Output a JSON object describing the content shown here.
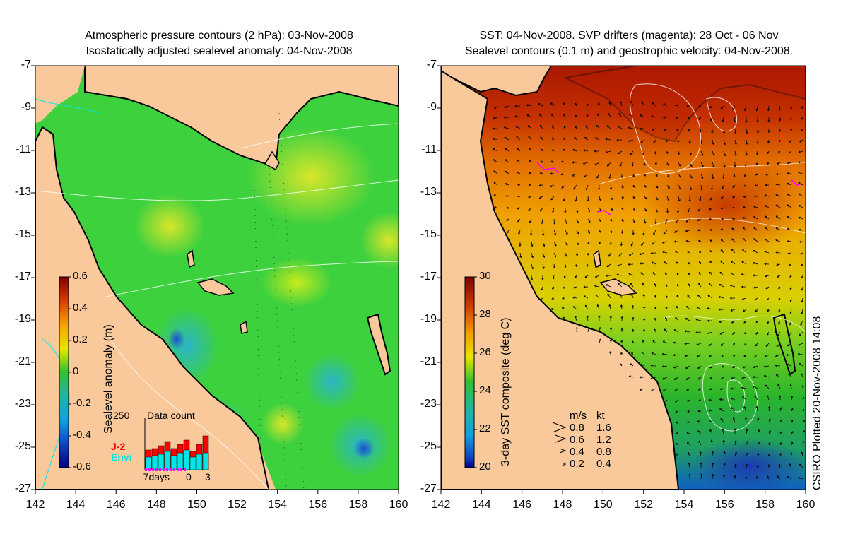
{
  "left_panel": {
    "title_line1": "Atmospheric pressure contours (2 hPa): 03-Nov-2008",
    "title_line2": "Isostatically adjusted sealevel anomaly: 04-Nov-2008",
    "colorbar": {
      "label": "Sealevel anomaly (m)",
      "ticks": [
        "0.6",
        "0.4",
        "0.2",
        "0",
        "-0.2",
        "-0.4",
        "-0.6"
      ]
    },
    "inset": {
      "title": "Data count",
      "ymax_label": "250",
      "legend": [
        {
          "name": "J-2",
          "color": "#ff0000"
        },
        {
          "name": "Envi",
          "color": "#00ffff"
        }
      ],
      "x_labels": [
        "-7days",
        "0",
        "3"
      ]
    }
  },
  "right_panel": {
    "title_line1": "SST: 04-Nov-2008. SVP drifters (magenta): 28 Oct - 06 Nov",
    "title_line2": "Sealevel contours (0.1 m) and geostrophic velocity: 04-Nov-2008.",
    "colorbar": {
      "label": "3-day SST composite (deg C)",
      "ticks": [
        "30",
        "28",
        "26",
        "24",
        "22",
        "20"
      ]
    },
    "velocity_legend": {
      "header_ms": "m/s",
      "header_kt": "kt",
      "rows": [
        {
          "ms": "0.8",
          "kt": "1.6"
        },
        {
          "ms": "0.6",
          "kt": "1.2"
        },
        {
          "ms": "0.4",
          "kt": "0.8"
        },
        {
          "ms": "0.2",
          "kt": "0.4"
        }
      ]
    }
  },
  "axes": {
    "y_labels": [
      "-7",
      "-9",
      "-11",
      "-13",
      "-15",
      "-17",
      "-19",
      "-21",
      "-23",
      "-25",
      "-27"
    ],
    "x_labels": [
      "142",
      "144",
      "146",
      "148",
      "150",
      "152",
      "154",
      "156",
      "158",
      "160"
    ]
  },
  "credit": "CSIRO Plotted 20-Nov-2008 14:08",
  "colors": {
    "land": "#f9c99c",
    "sla_mid": "#3ed13e",
    "sst_warm": "#b31f00",
    "coast": "#000000"
  }
}
